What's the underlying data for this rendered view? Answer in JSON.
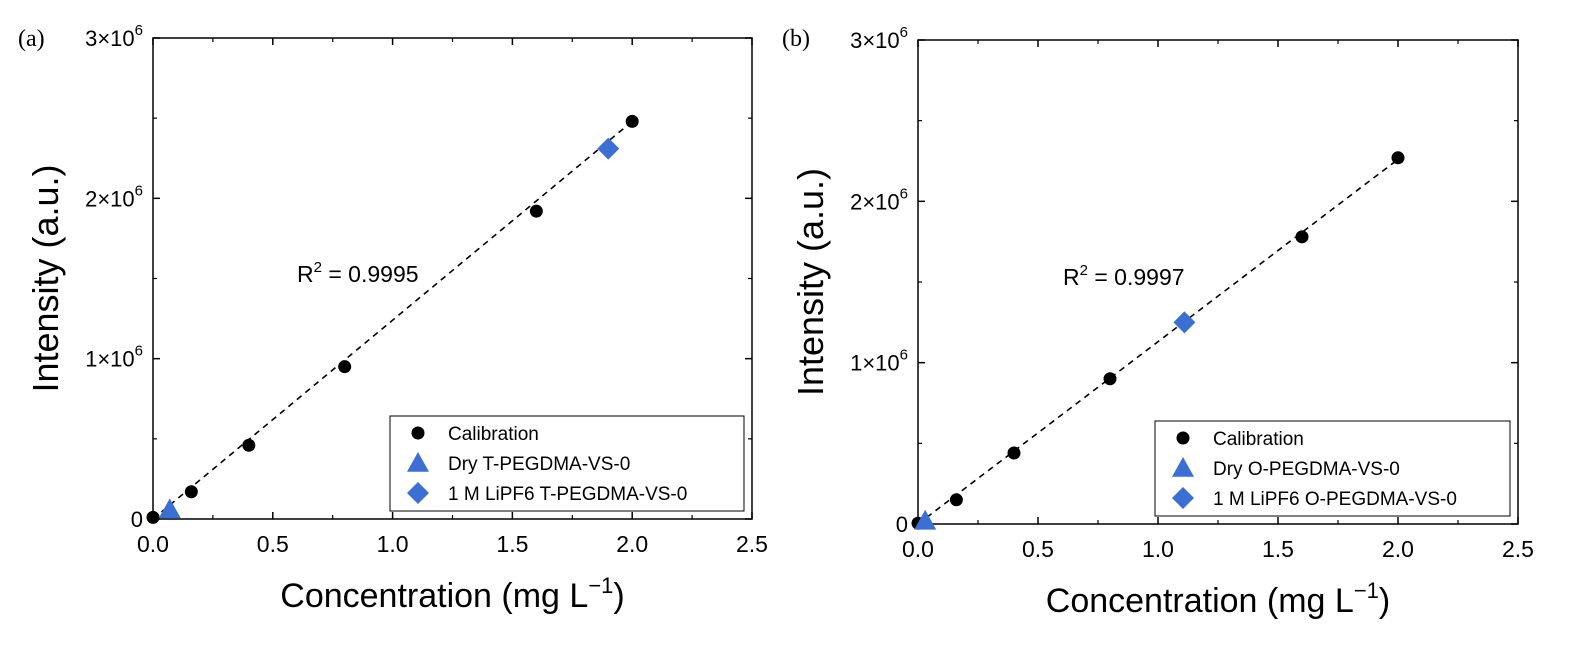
{
  "figure": {
    "panels": [
      {
        "label": "(a)",
        "r2_label": "R",
        "r2_value": " = 0.9995",
        "x_label": "Concentration (mg L",
        "x_label_sup": "−1",
        "x_label_end": ")",
        "y_label": "Intensity (a.u.)"
      },
      {
        "label": "(b)",
        "r2_label": "R",
        "r2_value": " = 0.9997",
        "x_label": "Concentration (mg L",
        "x_label_sup": "−1",
        "x_label_end": ")",
        "y_label": "Intensity (a.u.)"
      }
    ]
  },
  "chart_data": [
    {
      "type": "scatter",
      "title": "(a)",
      "xlabel": "Concentration (mg L−1)",
      "ylabel": "Intensity (a.u.)",
      "xlim": [
        0,
        2.5
      ],
      "ylim": [
        0,
        3000000
      ],
      "x_ticks": [
        "0.0",
        "0.5",
        "1.0",
        "1.5",
        "2.0",
        "2.5"
      ],
      "x_tick_values": [
        0,
        0.5,
        1.0,
        1.5,
        2.0,
        2.5
      ],
      "y_ticks": [
        {
          "value": 0,
          "base": "0",
          "exp": ""
        },
        {
          "value": 1000000,
          "base": "1×10",
          "exp": "6"
        },
        {
          "value": 2000000,
          "base": "2×10",
          "exp": "6"
        },
        {
          "value": 3000000,
          "base": "3×10",
          "exp": "6"
        }
      ],
      "annotation": "R2 = 0.9995",
      "fit_line": {
        "x": [
          0,
          2.0
        ],
        "y": [
          0,
          2480000
        ],
        "style": "dashed"
      },
      "legend_position": "bottom-right",
      "series": [
        {
          "name": "Calibration",
          "marker": "circle",
          "color": "#000000",
          "x": [
            0.0,
            0.16,
            0.4,
            0.8,
            1.6,
            2.0
          ],
          "y": [
            10000,
            170000,
            460000,
            950000,
            1920000,
            2480000
          ]
        },
        {
          "name": "Dry T-PEGDMA-VS-0",
          "marker": "triangle",
          "color": "#3b6fd4",
          "x": [
            0.07
          ],
          "y": [
            60000
          ]
        },
        {
          "name": "1 M LiPF6 T-PEGDMA-VS-0",
          "marker": "diamond",
          "color": "#3b6fd4",
          "x": [
            1.9
          ],
          "y": [
            2310000
          ]
        }
      ]
    },
    {
      "type": "scatter",
      "title": "(b)",
      "xlabel": "Concentration (mg L−1)",
      "ylabel": "Intensity (a.u.)",
      "xlim": [
        0,
        2.5
      ],
      "ylim": [
        0,
        3000000
      ],
      "x_ticks": [
        "0.0",
        "0.5",
        "1.0",
        "1.5",
        "2.0",
        "2.5"
      ],
      "x_tick_values": [
        0,
        0.5,
        1.0,
        1.5,
        2.0,
        2.5
      ],
      "y_ticks": [
        {
          "value": 0,
          "base": "0",
          "exp": ""
        },
        {
          "value": 1000000,
          "base": "1×10",
          "exp": "6"
        },
        {
          "value": 2000000,
          "base": "2×10",
          "exp": "6"
        },
        {
          "value": 3000000,
          "base": "3×10",
          "exp": "6"
        }
      ],
      "annotation": "R2 = 0.9997",
      "fit_line": {
        "x": [
          0,
          2.0
        ],
        "y": [
          0,
          2260000
        ],
        "style": "dashed"
      },
      "legend_position": "bottom-right",
      "series": [
        {
          "name": "Calibration",
          "marker": "circle",
          "color": "#000000",
          "x": [
            0.0,
            0.16,
            0.4,
            0.8,
            1.6,
            2.0
          ],
          "y": [
            5000,
            150000,
            440000,
            900000,
            1780000,
            2270000
          ]
        },
        {
          "name": "Dry O-PEGDMA-VS-0",
          "marker": "triangle",
          "color": "#3b6fd4",
          "x": [
            0.03
          ],
          "y": [
            20000
          ]
        },
        {
          "name": "1 M LiPF6 O-PEGDMA-VS-0",
          "marker": "diamond",
          "color": "#3b6fd4",
          "x": [
            1.11
          ],
          "y": [
            1250000
          ]
        }
      ]
    }
  ]
}
